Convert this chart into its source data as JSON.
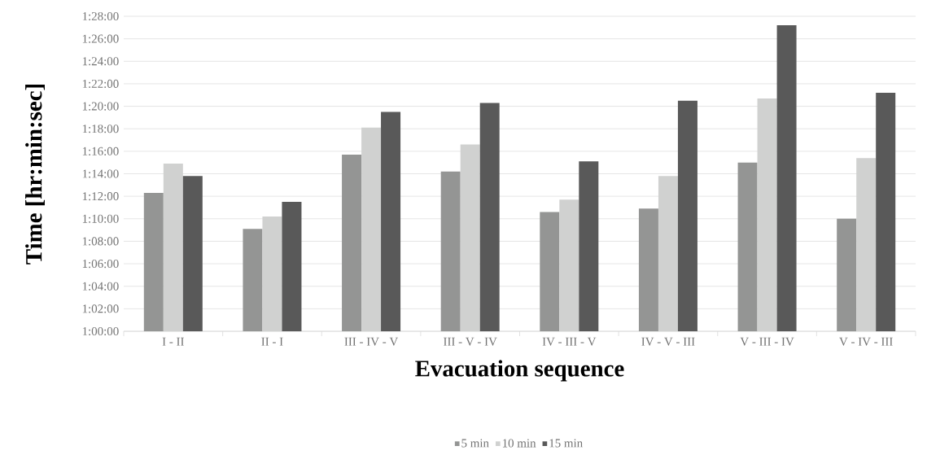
{
  "chart_data": {
    "type": "bar",
    "xlabel": "Evacuation sequence",
    "ylabel": "Time [hr:min:sec]",
    "categories": [
      "I - II",
      "II - I",
      "III - IV - V",
      "III - V - IV",
      "IV - III - V",
      "IV - V - III",
      "V - III - IV",
      "V - IV - III"
    ],
    "series": [
      {
        "name": "5 min",
        "color": "#949594",
        "values": [
          72.3,
          69.1,
          75.7,
          74.2,
          70.6,
          70.9,
          75.0,
          70.0
        ]
      },
      {
        "name": "10 min",
        "color": "#d0d1d0",
        "values": [
          74.9,
          70.2,
          78.1,
          76.6,
          71.7,
          73.8,
          80.7,
          75.4
        ]
      },
      {
        "name": "15 min",
        "color": "#595959",
        "values": [
          73.8,
          71.5,
          79.5,
          80.3,
          75.1,
          80.5,
          87.2,
          81.2
        ]
      }
    ],
    "ylim": [
      60,
      88
    ],
    "yticks": [
      {
        "value": 60,
        "label": "1:00:00"
      },
      {
        "value": 62,
        "label": "1:02:00"
      },
      {
        "value": 64,
        "label": "1:04:00"
      },
      {
        "value": 66,
        "label": "1:06:00"
      },
      {
        "value": 68,
        "label": "1:08:00"
      },
      {
        "value": 70,
        "label": "1:10:00"
      },
      {
        "value": 72,
        "label": "1:12:00"
      },
      {
        "value": 74,
        "label": "1:14:00"
      },
      {
        "value": 76,
        "label": "1:16:00"
      },
      {
        "value": 78,
        "label": "1:18:00"
      },
      {
        "value": 80,
        "label": "1:20:00"
      },
      {
        "value": 82,
        "label": "1:22:00"
      },
      {
        "value": 84,
        "label": "1:24:00"
      },
      {
        "value": 86,
        "label": "1:26:00"
      },
      {
        "value": 88,
        "label": "1:28:00"
      }
    ],
    "grid": "y",
    "legend": "bottom"
  }
}
